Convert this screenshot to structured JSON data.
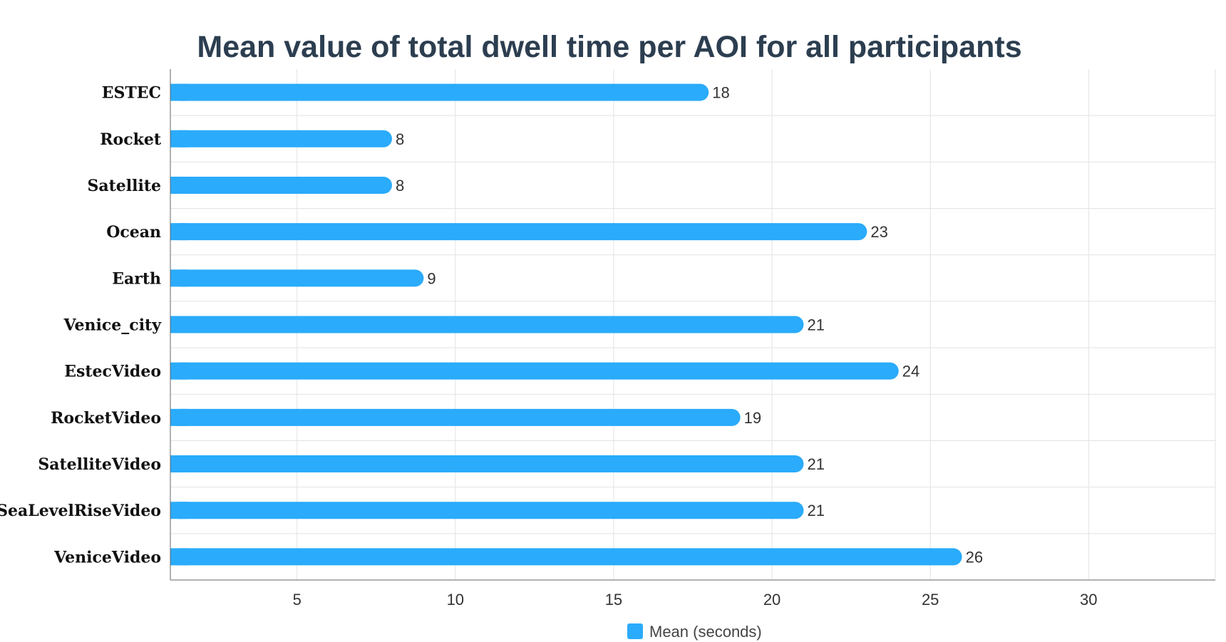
{
  "chart_data": {
    "type": "bar",
    "orientation": "horizontal",
    "title": "Mean value of total dwell time per AOI for all participants",
    "categories": [
      "ESTEC",
      "Rocket",
      "Satellite",
      "Ocean",
      "Earth",
      "Venice_city",
      "EstecVideo",
      "RocketVideo",
      "SatelliteVideo",
      "SeaLevelRiseVideo",
      "VeniceVideo"
    ],
    "series": [
      {
        "name": "Mean (seconds)",
        "values": [
          18,
          8,
          8,
          23,
          9,
          21,
          24,
          19,
          21,
          21,
          26
        ],
        "color": "#2aabfb"
      }
    ],
    "xlim": [
      1,
      34
    ],
    "xticks": [
      5,
      10,
      15,
      20,
      25,
      30
    ],
    "xlabel": "",
    "ylabel": "",
    "grid": true,
    "legend": "bottom-center",
    "data_labels": true
  }
}
